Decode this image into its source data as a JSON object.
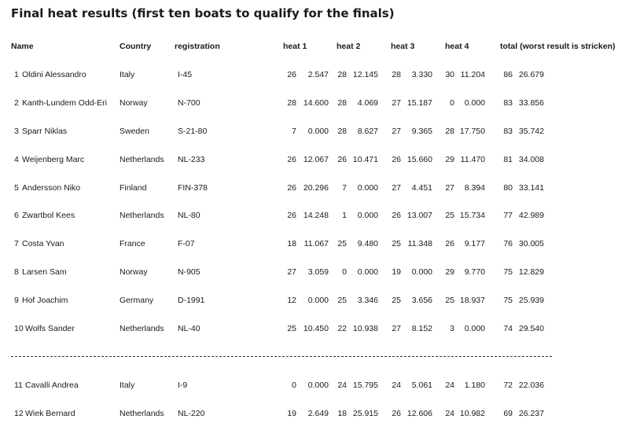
{
  "title": "Final heat results (first ten boats to qualify for the finals)",
  "headers": {
    "name": "Name",
    "country": "Country",
    "registration": "registration",
    "heat1": "heat 1",
    "heat2": "heat 2",
    "heat3": "heat 3",
    "heat4": "heat 4",
    "total": "total (worst result is stricken)"
  },
  "rows": [
    {
      "pos": "1",
      "name": "Oldini Alessandro",
      "country": "Italy",
      "reg": "I-45",
      "h1p": "26",
      "h1t": "2.547",
      "h2p": "28",
      "h2t": "12.145",
      "h3p": "28",
      "h3t": "3.330",
      "h4p": "30",
      "h4t": "11.204",
      "tp": "86",
      "tt": "26.679"
    },
    {
      "pos": "2",
      "name": "Kanth-Lundem Odd-Eri",
      "country": "Norway",
      "reg": "N-700",
      "h1p": "28",
      "h1t": "14.600",
      "h2p": "28",
      "h2t": "4.069",
      "h3p": "27",
      "h3t": "15.187",
      "h4p": "0",
      "h4t": "0.000",
      "tp": "83",
      "tt": "33.856"
    },
    {
      "pos": "3",
      "name": "Sparr Niklas",
      "country": "Sweden",
      "reg": "S-21-80",
      "h1p": "7",
      "h1t": "0.000",
      "h2p": "28",
      "h2t": "8.627",
      "h3p": "27",
      "h3t": "9.365",
      "h4p": "28",
      "h4t": "17.750",
      "tp": "83",
      "tt": "35.742"
    },
    {
      "pos": "4",
      "name": "Weijenberg Marc",
      "country": "Netherlands",
      "reg": "NL-233",
      "h1p": "26",
      "h1t": "12.067",
      "h2p": "26",
      "h2t": "10.471",
      "h3p": "26",
      "h3t": "15.660",
      "h4p": "29",
      "h4t": "11.470",
      "tp": "81",
      "tt": "34.008"
    },
    {
      "pos": "5",
      "name": "Andersson Niko",
      "country": "Finland",
      "reg": "FIN-378",
      "h1p": "26",
      "h1t": "20.296",
      "h2p": "7",
      "h2t": "0.000",
      "h3p": "27",
      "h3t": "4.451",
      "h4p": "27",
      "h4t": "8.394",
      "tp": "80",
      "tt": "33.141"
    },
    {
      "pos": "6",
      "name": "Zwartbol Kees",
      "country": "Netherlands",
      "reg": "NL-80",
      "h1p": "26",
      "h1t": "14.248",
      "h2p": "1",
      "h2t": "0.000",
      "h3p": "26",
      "h3t": "13.007",
      "h4p": "25",
      "h4t": "15.734",
      "tp": "77",
      "tt": "42.989"
    },
    {
      "pos": "7",
      "name": "Costa Yvan",
      "country": "France",
      "reg": "F-07",
      "h1p": "18",
      "h1t": "11.067",
      "h2p": "25",
      "h2t": "9.480",
      "h3p": "25",
      "h3t": "11.348",
      "h4p": "26",
      "h4t": "9.177",
      "tp": "76",
      "tt": "30.005"
    },
    {
      "pos": "8",
      "name": "Larsen Sam",
      "country": "Norway",
      "reg": "N-905",
      "h1p": "27",
      "h1t": "3.059",
      "h2p": "0",
      "h2t": "0.000",
      "h3p": "19",
      "h3t": "0.000",
      "h4p": "29",
      "h4t": "9.770",
      "tp": "75",
      "tt": "12.829"
    },
    {
      "pos": "9",
      "name": "Hof Joachim",
      "country": "Germany",
      "reg": "D-1991",
      "h1p": "12",
      "h1t": "0.000",
      "h2p": "25",
      "h2t": "3.346",
      "h3p": "25",
      "h3t": "3.656",
      "h4p": "25",
      "h4t": "18.937",
      "tp": "75",
      "tt": "25.939"
    },
    {
      "pos": "10",
      "name": "Wolfs Sander",
      "country": "Netherlands",
      "reg": "NL-40",
      "h1p": "25",
      "h1t": "10.450",
      "h2p": "22",
      "h2t": "10.938",
      "h3p": "27",
      "h3t": "8.152",
      "h4p": "3",
      "h4t": "0.000",
      "tp": "74",
      "tt": "29.540"
    },
    {
      "pos": "11",
      "name": "Cavalli Andrea",
      "country": "Italy",
      "reg": "I-9",
      "h1p": "0",
      "h1t": "0.000",
      "h2p": "24",
      "h2t": "15.795",
      "h3p": "24",
      "h3t": "5.061",
      "h4p": "24",
      "h4t": "1.180",
      "tp": "72",
      "tt": "22.036"
    },
    {
      "pos": "12",
      "name": "Wiek Bernard",
      "country": "Netherlands",
      "reg": "NL-220",
      "h1p": "19",
      "h1t": "2.649",
      "h2p": "18",
      "h2t": "25.915",
      "h3p": "26",
      "h3t": "12.606",
      "h4p": "24",
      "h4t": "10.982",
      "tp": "69",
      "tt": "26.237"
    }
  ]
}
